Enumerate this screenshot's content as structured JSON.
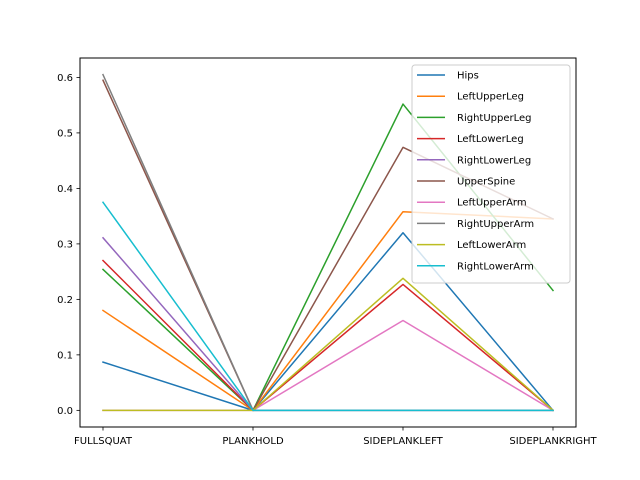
{
  "chart_data": {
    "type": "line",
    "categories": [
      "FULLSQUAT",
      "PLANKHOLD",
      "SIDEPLANKLEFT",
      "SIDEPLANKRIGHT"
    ],
    "ylim": [
      -0.03,
      0.635
    ],
    "yticks": [
      0.0,
      0.1,
      0.2,
      0.3,
      0.4,
      0.5,
      0.6
    ],
    "ytick_labels": [
      "0.0",
      "0.1",
      "0.2",
      "0.3",
      "0.4",
      "0.5",
      "0.6"
    ],
    "legend_position": "top-right",
    "grid": false,
    "series": [
      {
        "name": "Hips",
        "color": "#1f77b4",
        "values": [
          0.087,
          0.0,
          0.32,
          0.0
        ]
      },
      {
        "name": "LeftUpperLeg",
        "color": "#ff7f0e",
        "values": [
          0.18,
          0.0,
          0.358,
          0.345
        ]
      },
      {
        "name": "RightUpperLeg",
        "color": "#2ca02c",
        "values": [
          0.254,
          0.0,
          0.552,
          0.216
        ]
      },
      {
        "name": "LeftLowerLeg",
        "color": "#d62728",
        "values": [
          0.27,
          0.0,
          0.227,
          0.0
        ]
      },
      {
        "name": "RightLowerLeg",
        "color": "#9467bd",
        "values": [
          0.311,
          0.0,
          0.0,
          0.0
        ]
      },
      {
        "name": "UpperSpine",
        "color": "#8c564b",
        "values": [
          0.595,
          0.0,
          0.474,
          0.345
        ]
      },
      {
        "name": "LeftUpperArm",
        "color": "#e377c2",
        "values": [
          0.0,
          0.0,
          0.162,
          0.0
        ]
      },
      {
        "name": "RightUpperArm",
        "color": "#7f7f7f",
        "values": [
          0.605,
          0.0,
          0.0,
          0.0
        ]
      },
      {
        "name": "LeftLowerArm",
        "color": "#bcbd22",
        "values": [
          0.0,
          0.0,
          0.238,
          0.0
        ]
      },
      {
        "name": "RightLowerArm",
        "color": "#17becf",
        "values": [
          0.375,
          0.0,
          0.0,
          0.0
        ]
      }
    ]
  }
}
